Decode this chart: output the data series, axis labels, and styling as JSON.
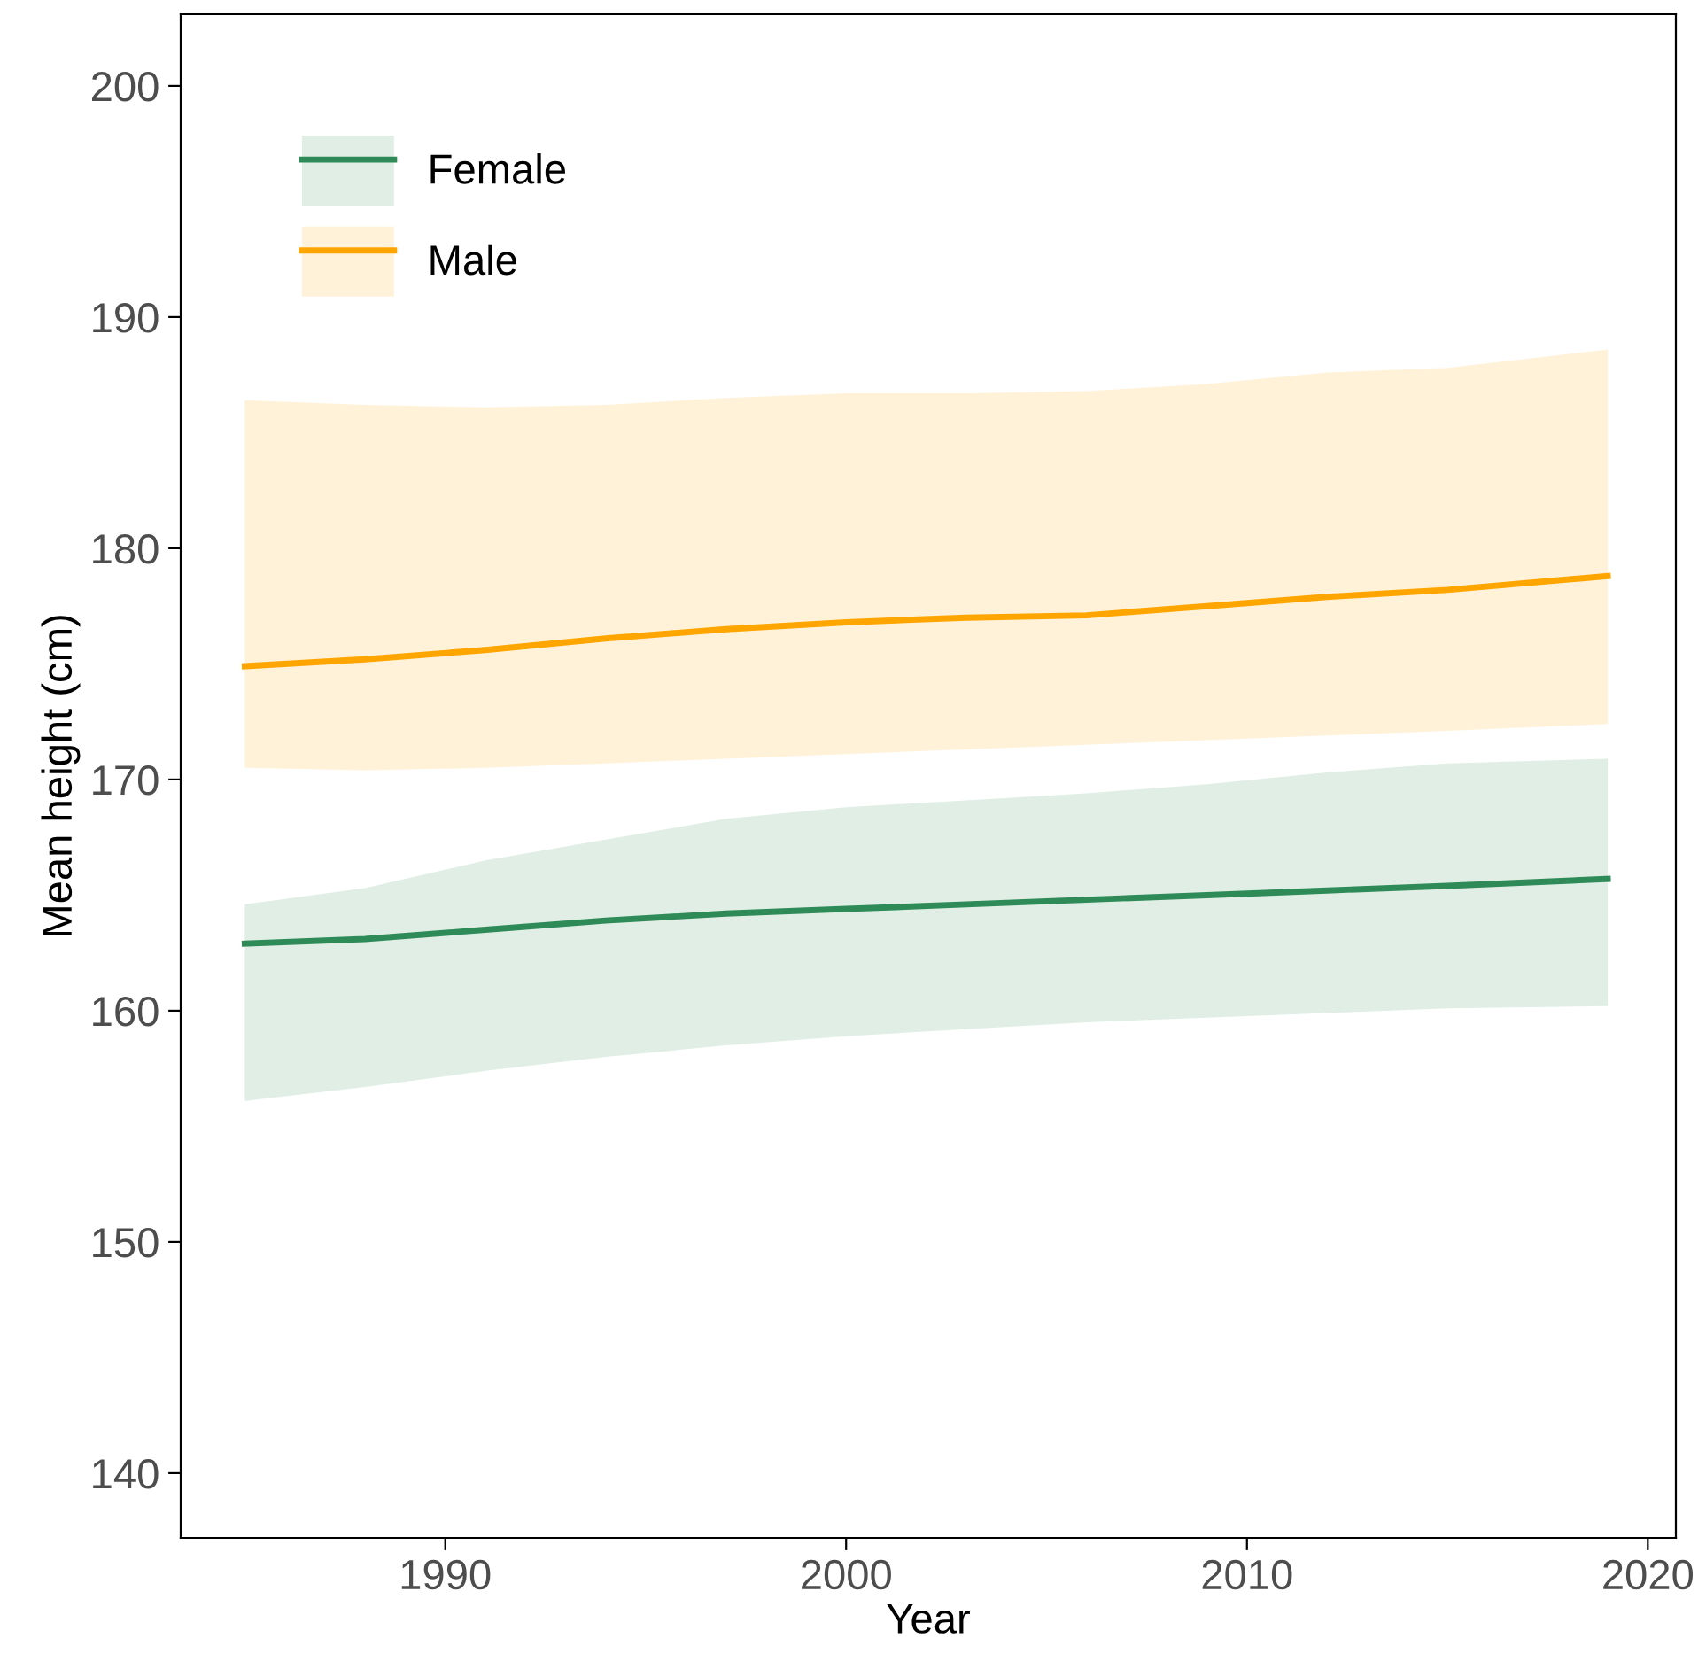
{
  "chart_data": {
    "type": "line",
    "xlabel": "Year",
    "ylabel": "Mean height (cm)",
    "x": [
      1985,
      1988,
      1991,
      1994,
      1997,
      2000,
      2003,
      2006,
      2009,
      2012,
      2015,
      2019
    ],
    "series": [
      {
        "name": "Female",
        "color": "#2e8b57",
        "values": [
          162.9,
          163.1,
          163.5,
          163.9,
          164.2,
          164.4,
          164.6,
          164.8,
          165.0,
          165.2,
          165.4,
          165.7
        ],
        "lower": [
          156.1,
          156.7,
          157.4,
          158.0,
          158.5,
          158.9,
          159.2,
          159.5,
          159.7,
          159.9,
          160.1,
          160.2
        ],
        "upper": [
          164.6,
          165.3,
          166.5,
          167.4,
          168.3,
          168.8,
          169.1,
          169.4,
          169.8,
          170.3,
          170.7,
          170.9
        ]
      },
      {
        "name": "Male",
        "color": "#ffa500",
        "values": [
          174.9,
          175.2,
          175.6,
          176.1,
          176.5,
          176.8,
          177.0,
          177.1,
          177.5,
          177.9,
          178.2,
          178.8
        ],
        "lower": [
          170.5,
          170.4,
          170.5,
          170.7,
          170.9,
          171.1,
          171.3,
          171.5,
          171.7,
          171.9,
          172.1,
          172.4
        ],
        "upper": [
          186.4,
          186.2,
          186.1,
          186.2,
          186.5,
          186.7,
          186.7,
          186.8,
          187.1,
          187.6,
          187.8,
          188.6
        ]
      }
    ],
    "xlim": [
      1983.4,
      2020.7
    ],
    "xticks": [
      1990,
      2000,
      2010,
      2020
    ],
    "ylim": [
      137.2,
      203.1
    ],
    "yticks": [
      140,
      150,
      160,
      170,
      180,
      190,
      200
    ],
    "grid": false,
    "legend": "top left",
    "line_style": "solid",
    "marker": "none"
  }
}
